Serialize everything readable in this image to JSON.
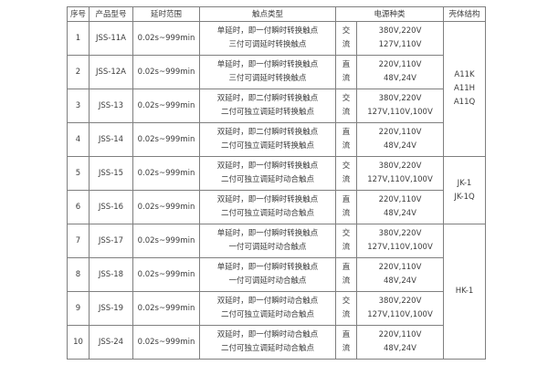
{
  "colors": {
    "background": "#ffffff",
    "border": "#7f7f7f",
    "text": "#3c3c3c"
  },
  "table": {
    "headers": {
      "index": "序号",
      "model": "产品型号",
      "delay": "延时范围",
      "contact": "触点类型",
      "power": "电源种类",
      "housing": "壳体结构"
    },
    "rows": [
      {
        "index": "1",
        "model": "JSS-11A",
        "delay": "0.02s~999min",
        "contact1": "单延时，即一付瞬时转换触点",
        "contact2": "三付可调延时转换触点",
        "cur1": "交",
        "cur2": "流",
        "volt1": "380V,220V",
        "volt2": "127V,110V"
      },
      {
        "index": "2",
        "model": "JSS-12A",
        "delay": "0.02s~999min",
        "contact1": "单延时，即一付瞬时转换触点",
        "contact2": "三付可调延时转换触点",
        "cur1": "直",
        "cur2": "流",
        "volt1": "220V,110V",
        "volt2": "48V,24V"
      },
      {
        "index": "3",
        "model": "JSS-13",
        "delay": "0.02s~999min",
        "contact1": "双延时，即二付瞬时转换触点",
        "contact2": "二付可独立调延时转换触点",
        "cur1": "交",
        "cur2": "流",
        "volt1": "380V,220V",
        "volt2": "127V,110V,100V"
      },
      {
        "index": "4",
        "model": "JSS-14",
        "delay": "0.02s~999min",
        "contact1": "双延时，即二付瞬时转换触点",
        "contact2": "二付可独立调延时转换触点",
        "cur1": "直",
        "cur2": "流",
        "volt1": "220V,110V",
        "volt2": "48V,24V"
      },
      {
        "index": "5",
        "model": "JSS-15",
        "delay": "0.02s~999min",
        "contact1": "双延时，即一付瞬时转换触点",
        "contact2": "二付可独立调延时动合触点",
        "cur1": "交",
        "cur2": "流",
        "volt1": "380V,220V",
        "volt2": "127V,110V,100V"
      },
      {
        "index": "6",
        "model": "JSS-16",
        "delay": "0.02s~999min",
        "contact1": "双延时，即一付瞬时转换触点",
        "contact2": "二付可独立调延时动合触点",
        "cur1": "直",
        "cur2": "流",
        "volt1": "220V,110V",
        "volt2": "48V,24V"
      },
      {
        "index": "7",
        "model": "JSS-17",
        "delay": "0.02s~999min",
        "contact1": "单延时，即一付瞬时转换触点",
        "contact2": "一付可调延时动合触点",
        "cur1": "交",
        "cur2": "流",
        "volt1": "380V,220V",
        "volt2": "127V,110V,100V"
      },
      {
        "index": "8",
        "model": "JSS-18",
        "delay": "0.02s~999min",
        "contact1": "单延时，即一付瞬时转换触点",
        "contact2": "一付可调延时动合触点",
        "cur1": "直",
        "cur2": "流",
        "volt1": "220V,110V",
        "volt2": "48V,24V"
      },
      {
        "index": "9",
        "model": "JSS-19",
        "delay": "0.02s~999min",
        "contact1": "双延时，即一付瞬时动合触点",
        "contact2": "二付可独立调延时动合触点",
        "cur1": "交",
        "cur2": "流",
        "volt1": "380V,220V",
        "volt2": "127V,110V,100V"
      },
      {
        "index": "10",
        "model": "JSS-24",
        "delay": "0.02s~999min",
        "contact1": "双延时，即一付瞬时动合触点",
        "contact2": "二付可独立调延时动合触点",
        "cur1": "直",
        "cur2": "流",
        "volt1": "220V,110V",
        "volt2": "48V,24V"
      }
    ],
    "housing_groups": [
      {
        "span_rows": 4,
        "lines": [
          "A11K",
          "A11H",
          "A11Q"
        ]
      },
      {
        "span_rows": 2,
        "lines": [
          "JK-1",
          "JK-1Q"
        ]
      },
      {
        "span_rows": 4,
        "lines": [
          "HK-1"
        ]
      }
    ]
  }
}
